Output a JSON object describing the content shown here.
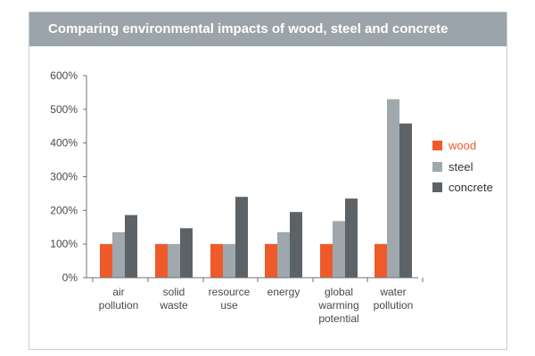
{
  "title": "Comparing environmental impacts of wood, steel and concrete",
  "colors": {
    "wood": "#ef5a2a",
    "steel": "#9ea8ad",
    "concrete": "#5c6266",
    "title_bar": "#9aa4aa"
  },
  "chart_data": {
    "type": "bar",
    "categories": [
      [
        "air",
        "pollution"
      ],
      [
        "solid",
        "waste"
      ],
      [
        "resource",
        "use"
      ],
      [
        "energy"
      ],
      [
        "global",
        "warming",
        "potential"
      ],
      [
        "water",
        "pollution"
      ]
    ],
    "series": [
      {
        "name": "wood",
        "values": [
          100,
          100,
          100,
          100,
          100,
          100
        ]
      },
      {
        "name": "steel",
        "values": [
          135,
          100,
          100,
          135,
          168,
          530
        ]
      },
      {
        "name": "concrete",
        "values": [
          186,
          147,
          240,
          195,
          235,
          458
        ]
      }
    ],
    "yticks": [
      "0%",
      "100%",
      "200%",
      "300%",
      "400%",
      "500%",
      "600%"
    ],
    "ylim": [
      0,
      600
    ],
    "grid": "none",
    "legend_placement": "right"
  }
}
